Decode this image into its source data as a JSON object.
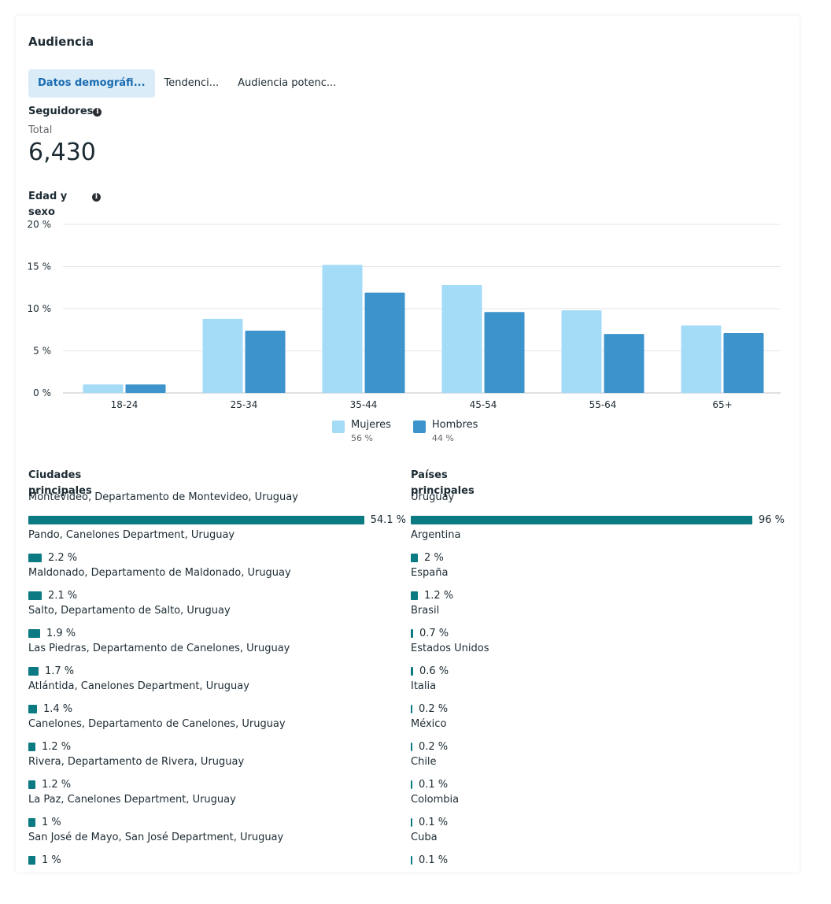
{
  "title": "Audiencia",
  "tabs": [
    {
      "label": "Datos demográfi..."
    },
    {
      "label": "Tendenci..."
    },
    {
      "label": "Audiencia potenc..."
    }
  ],
  "followers": {
    "heading": "Seguidores",
    "total_label": "Total",
    "total_value": "6,430"
  },
  "age_gender": {
    "heading": "Edad y sexo"
  },
  "colors": {
    "women": "#a4dbf7",
    "men": "#3d93cc",
    "bar": "#0b7a83"
  },
  "chart_data": {
    "type": "bar",
    "title": "Edad y sexo",
    "categories": [
      "18-24",
      "25-34",
      "35-44",
      "45-54",
      "55-64",
      "65+"
    ],
    "series": [
      {
        "name": "Mujeres",
        "values": [
          1.0,
          8.8,
          15.2,
          12.8,
          9.8,
          8.0
        ]
      },
      {
        "name": "Hombres",
        "values": [
          1.0,
          7.4,
          11.9,
          9.6,
          7.0,
          7.1
        ]
      }
    ],
    "yticks": [
      "0 %",
      "5 %",
      "10 %",
      "15 %",
      "20 %"
    ],
    "ylim": [
      0,
      20
    ],
    "grid": true,
    "legend": [
      {
        "label": "Mujeres",
        "pct": "56 %"
      },
      {
        "label": "Hombres",
        "pct": "44 %"
      }
    ]
  },
  "cities": {
    "heading": "Ciudades principales",
    "items": [
      {
        "name": "Montevideo, Departamento de Montevideo, Uruguay",
        "value": "54.1 %",
        "pct": 54.1
      },
      {
        "name": "Pando, Canelones Department, Uruguay",
        "value": "2.2 %",
        "pct": 2.2
      },
      {
        "name": "Maldonado, Departamento de Maldonado, Uruguay",
        "value": "2.1 %",
        "pct": 2.1
      },
      {
        "name": "Salto, Departamento de Salto, Uruguay",
        "value": "1.9 %",
        "pct": 1.9
      },
      {
        "name": "Las Piedras, Departamento de Canelones, Uruguay",
        "value": "1.7 %",
        "pct": 1.7
      },
      {
        "name": "Atlántida, Canelones Department, Uruguay",
        "value": "1.4 %",
        "pct": 1.4
      },
      {
        "name": "Canelones, Departamento de Canelones, Uruguay",
        "value": "1.2 %",
        "pct": 1.2
      },
      {
        "name": "Rivera, Departamento de Rivera, Uruguay",
        "value": "1.2 %",
        "pct": 1.2
      },
      {
        "name": "La Paz, Canelones Department, Uruguay",
        "value": "1 %",
        "pct": 1.0
      },
      {
        "name": "San José de Mayo, San José Department, Uruguay",
        "value": "1 %",
        "pct": 1.0
      }
    ]
  },
  "countries": {
    "heading": "Países principales",
    "items": [
      {
        "name": "Uruguay",
        "value": "96 %",
        "pct": 96
      },
      {
        "name": "Argentina",
        "value": "2 %",
        "pct": 2
      },
      {
        "name": "España",
        "value": "1.2 %",
        "pct": 1.2
      },
      {
        "name": "Brasil",
        "value": "0.7 %",
        "pct": 0.7
      },
      {
        "name": "Estados Unidos",
        "value": "0.6 %",
        "pct": 0.6
      },
      {
        "name": "Italia",
        "value": "0.2 %",
        "pct": 0.2
      },
      {
        "name": "México",
        "value": "0.2 %",
        "pct": 0.2
      },
      {
        "name": "Chile",
        "value": "0.1 %",
        "pct": 0.1
      },
      {
        "name": "Colombia",
        "value": "0.1 %",
        "pct": 0.1
      },
      {
        "name": "Cuba",
        "value": "0.1 %",
        "pct": 0.1
      }
    ]
  }
}
